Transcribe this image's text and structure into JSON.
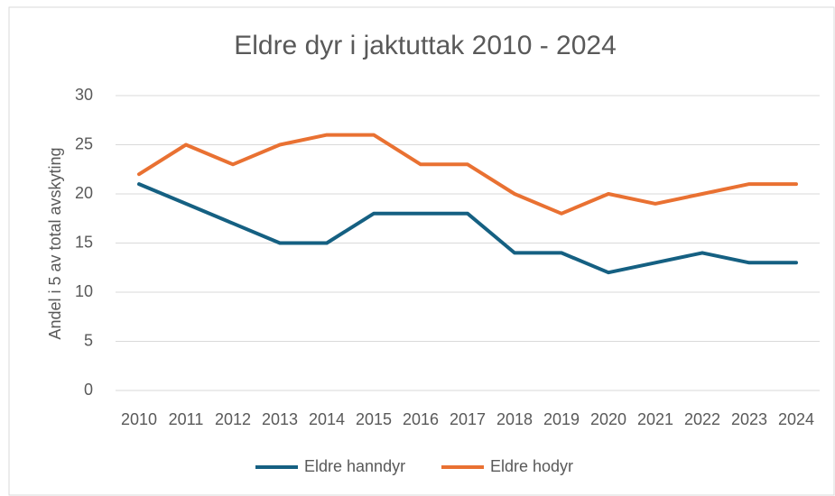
{
  "chart_data": {
    "type": "line",
    "title": "Eldre dyr i jaktuttak 2010 - 2024",
    "y_label": "Andel i 5 av total avskyting",
    "categories": [
      "2010",
      "2011",
      "2012",
      "2013",
      "2014",
      "2015",
      "2016",
      "2017",
      "2018",
      "2019",
      "2020",
      "2021",
      "2022",
      "2023",
      "2024"
    ],
    "series": [
      {
        "name": "Eldre hanndyr",
        "color": "#156082",
        "values": [
          21,
          19,
          17,
          15,
          15,
          18,
          18,
          18,
          14,
          14,
          12,
          13,
          14,
          13,
          13
        ]
      },
      {
        "name": "Eldre hodyr",
        "color": "#E97132",
        "values": [
          22,
          25,
          23,
          25,
          26,
          26,
          23,
          23,
          20,
          18,
          20,
          19,
          20,
          21,
          21
        ]
      }
    ],
    "ylim": [
      0,
      30
    ],
    "yticks": [
      0,
      5,
      10,
      15,
      20,
      25,
      30
    ],
    "grid": true,
    "legend": "bottom"
  }
}
